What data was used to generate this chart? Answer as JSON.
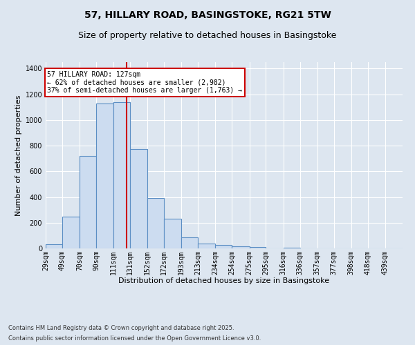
{
  "title_line1": "57, HILLARY ROAD, BASINGSTOKE, RG21 5TW",
  "title_line2": "Size of property relative to detached houses in Basingstoke",
  "xlabel": "Distribution of detached houses by size in Basingstoke",
  "ylabel": "Number of detached properties",
  "bar_labels": [
    "29sqm",
    "49sqm",
    "70sqm",
    "90sqm",
    "111sqm",
    "131sqm",
    "152sqm",
    "172sqm",
    "193sqm",
    "213sqm",
    "234sqm",
    "254sqm",
    "275sqm",
    "295sqm",
    "316sqm",
    "336sqm",
    "357sqm",
    "377sqm",
    "398sqm",
    "418sqm",
    "439sqm"
  ],
  "bar_values": [
    30,
    248,
    722,
    1130,
    1140,
    775,
    390,
    230,
    87,
    35,
    27,
    18,
    10,
    0,
    8,
    0,
    0,
    0,
    0,
    0,
    0
  ],
  "bar_color": "#ccdcf0",
  "bar_edge_color": "#5b8ec4",
  "vline_x": 127,
  "bin_edges": [
    29,
    49,
    70,
    90,
    111,
    131,
    152,
    172,
    193,
    213,
    234,
    254,
    275,
    295,
    316,
    336,
    357,
    377,
    398,
    418,
    439
  ],
  "annotation_text_line1": "57 HILLARY ROAD: 127sqm",
  "annotation_text_line2": "← 62% of detached houses are smaller (2,982)",
  "annotation_text_line3": "37% of semi-detached houses are larger (1,763) →",
  "annotation_box_color": "#ffffff",
  "annotation_box_edge": "#cc0000",
  "vline_color": "#cc0000",
  "ylim": [
    0,
    1450
  ],
  "yticks": [
    0,
    200,
    400,
    600,
    800,
    1000,
    1200,
    1400
  ],
  "background_color": "#dde6f0",
  "plot_bg_color": "#dde6f0",
  "footer_line1": "Contains HM Land Registry data © Crown copyright and database right 2025.",
  "footer_line2": "Contains public sector information licensed under the Open Government Licence v3.0.",
  "grid_color": "#ffffff",
  "title_fontsize": 10,
  "subtitle_fontsize": 9,
  "axis_label_fontsize": 8,
  "tick_fontsize": 7,
  "annotation_fontsize": 7
}
